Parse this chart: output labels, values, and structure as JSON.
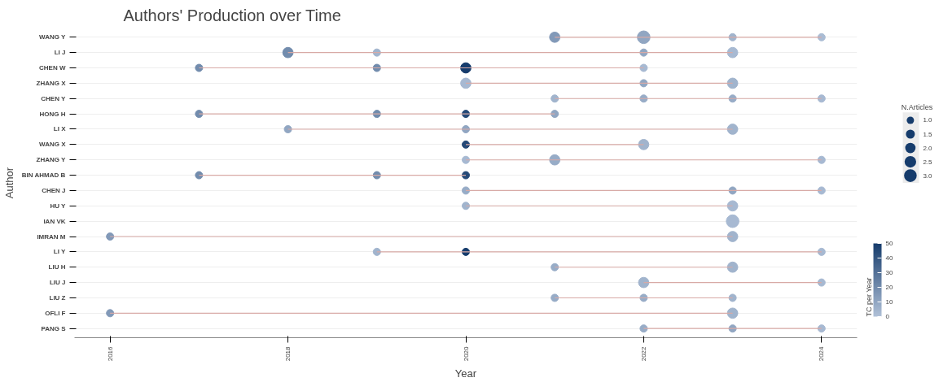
{
  "chart_data": {
    "type": "bubble",
    "orientation": "horizontal",
    "title": "Authors' Production over Time",
    "xlabel": "Year",
    "ylabel": "Author",
    "categories": [
      "WANG Y",
      "LI J",
      "CHEN W",
      "ZHANG X",
      "CHEN Y",
      "HONG H",
      "LI X",
      "WANG X",
      "ZHANG Y",
      "BIN AHMAD B",
      "CHEN J",
      "HU Y",
      "IAN VK",
      "IMRAN M",
      "LI Y",
      "LIU H",
      "LIU J",
      "LIU Z",
      "OFLI F",
      "PANG S"
    ],
    "xlim": [
      2015.6,
      2024.4
    ],
    "xticks": [
      2016,
      2018,
      2020,
      2022,
      2024
    ],
    "grid": "y",
    "legend_title": "N.Articles",
    "size_legend": [
      {
        "value": 1,
        "label": "1.0"
      },
      1.5,
      {
        "value": 2,
        "label": "2.0"
      },
      2.5,
      {
        "value": 3,
        "label": "3.0"
      }
    ],
    "clabel": "TC per Year",
    "clim": [
      0,
      50
    ],
    "cticks": [
      0,
      10,
      20,
      30,
      40,
      50
    ],
    "series": [
      {
        "type": "bar",
        "color": "#d8aaa6",
        "base": [
          2021,
          2018,
          2017,
          2020,
          2021,
          2017,
          2018,
          2020,
          2020,
          2017,
          2020,
          2020,
          null,
          2016,
          2019,
          2021,
          2022,
          2021,
          2016,
          2022
        ],
        "values": [
          3,
          5,
          5,
          3,
          3,
          4,
          5,
          2,
          4,
          3,
          4,
          3,
          null,
          7,
          5,
          2,
          2,
          2,
          7,
          2
        ]
      },
      {
        "x": [
          "WANG Y",
          "WANG Y",
          "WANG Y",
          "WANG Y",
          "LI J",
          "LI J",
          "LI J",
          "LI J",
          "CHEN W",
          "CHEN W",
          "CHEN W",
          "CHEN W",
          "ZHANG X",
          "ZHANG X",
          "ZHANG X",
          "CHEN Y",
          "CHEN Y",
          "CHEN Y",
          "CHEN Y",
          "HONG H",
          "HONG H",
          "HONG H",
          "HONG H",
          "LI X",
          "LI X",
          "LI X",
          "WANG X",
          "WANG X",
          "ZHANG Y",
          "ZHANG Y",
          "ZHANG Y",
          "BIN AHMAD B",
          "BIN AHMAD B",
          "BIN AHMAD B",
          "CHEN J",
          "CHEN J",
          "CHEN J",
          "HU Y",
          "HU Y",
          "IAN VK",
          "IMRAN M",
          "IMRAN M",
          "LI Y",
          "LI Y",
          "LI Y",
          "LIU H",
          "LIU H",
          "LIU J",
          "LIU J",
          "LIU Z",
          "LIU Z",
          "LIU Z",
          "OFLI F",
          "OFLI F",
          "PANG S",
          "PANG S",
          "PANG S"
        ],
        "values": [
          2021,
          2022,
          2023,
          2024,
          2018,
          2019,
          2022,
          2023,
          2017,
          2019,
          2020,
          2022,
          2020,
          2022,
          2023,
          2021,
          2022,
          2023,
          2024,
          2017,
          2019,
          2020,
          2021,
          2018,
          2020,
          2023,
          2020,
          2022,
          2020,
          2021,
          2024,
          2017,
          2019,
          2020,
          2020,
          2023,
          2024,
          2020,
          2023,
          2023,
          2016,
          2023,
          2019,
          2020,
          2024,
          2021,
          2023,
          2022,
          2024,
          2021,
          2022,
          2023,
          2016,
          2023,
          2022,
          2023,
          2024
        ],
        "colors": [
          "#8299b8",
          "#91a6c2",
          "#a1b4cd",
          "#aabcd4",
          "#728cad",
          "#a1b4cd",
          "#91a6c2",
          "#a7b9d2",
          "#728cad",
          "#728cad",
          "#163c6c",
          "#a7b9d2",
          "#a7b9d2",
          "#91a6c2",
          "#a1b4cd",
          "#a1b4cd",
          "#97acc7",
          "#97acc7",
          "#a7b9d2",
          "#728cad",
          "#728cad",
          "#254977",
          "#91a6c2",
          "#91a6c2",
          "#91a6c2",
          "#a1b4cd",
          "#254977",
          "#a1b4cd",
          "#a7b9d2",
          "#97acc7",
          "#a7b9d2",
          "#728cad",
          "#728cad",
          "#254977",
          "#97acc7",
          "#91a6c2",
          "#a7b9d2",
          "#a1b4cd",
          "#a7b9d2",
          "#a7b9d2",
          "#8299b8",
          "#a1b4cd",
          "#a1b4cd",
          "#163c6c",
          "#a7b9d2",
          "#97acc7",
          "#a1b4cd",
          "#a1b4cd",
          "#a7b9d2",
          "#97acc7",
          "#97acc7",
          "#a1b4cd",
          "#8299b8",
          "#a1b4cd",
          "#97acc7",
          "#91a6c2",
          "#a7b9d2"
        ],
        "sizes": [
          2,
          3,
          1,
          1,
          2,
          1,
          1,
          2,
          1,
          1,
          2,
          1,
          2,
          1,
          2,
          1,
          1,
          1,
          1,
          1,
          1,
          1,
          1,
          1,
          1,
          2,
          1,
          2,
          1,
          2,
          1,
          1,
          1,
          1,
          1,
          1,
          1,
          1,
          2,
          3,
          1,
          2,
          1,
          1,
          1,
          1,
          2,
          2,
          1,
          1,
          1,
          1,
          1,
          2,
          1,
          1,
          1
        ],
        "cvalues": [
          15,
          10,
          5,
          2,
          20,
          5,
          10,
          3,
          20,
          20,
          50,
          3,
          3,
          10,
          5,
          5,
          8,
          8,
          3,
          20,
          20,
          45,
          10,
          10,
          10,
          5,
          45,
          5,
          3,
          8,
          3,
          20,
          20,
          45,
          8,
          10,
          3,
          5,
          3,
          3,
          15,
          5,
          5,
          50,
          3,
          8,
          5,
          5,
          3,
          8,
          8,
          5,
          15,
          5,
          8,
          10,
          3
        ]
      }
    ]
  }
}
